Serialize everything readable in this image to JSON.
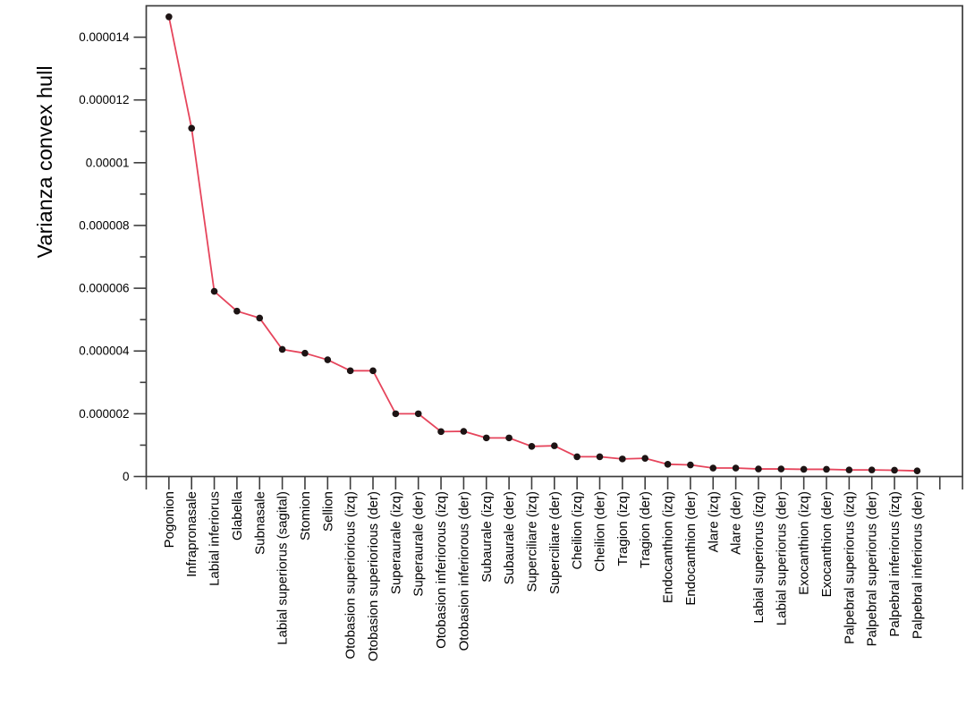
{
  "chart_data": {
    "type": "line",
    "title": "",
    "xlabel": "",
    "ylabel": "Varianza convex hull",
    "legend": "none",
    "grid": "off",
    "frame_box": true,
    "line_color": "#e6455c",
    "marker_color": "#1d1414",
    "frame_color": "#3d3d3d",
    "ylim": [
      0,
      1.5e-05
    ],
    "y_major_ticks": [
      {
        "value": 0,
        "label": "0"
      },
      {
        "value": 2e-06,
        "label": "0.000002"
      },
      {
        "value": 4e-06,
        "label": "0.000004"
      },
      {
        "value": 6e-06,
        "label": "0.000006"
      },
      {
        "value": 8e-06,
        "label": "0.000008"
      },
      {
        "value": 1e-05,
        "label": "0.00001"
      },
      {
        "value": 1.2e-05,
        "label": "0.000012"
      },
      {
        "value": 1.4e-05,
        "label": "0.000014"
      }
    ],
    "y_minor_ticks": [
      1e-06,
      3e-06,
      5e-06,
      7e-06,
      9e-06,
      1.1e-05,
      1.3e-05
    ],
    "extra_unlabeled_x_ticks": 2,
    "categories": [
      "Pogonion",
      "Infrapronasale",
      "Labial inferiorus",
      "Glabella",
      "Subnasale",
      "Labial superiorus (sagital)",
      "Stomion",
      "Sellion",
      "Otobasion superiorious (izq)",
      "Otobasion superiorious (der)",
      "Superaurale (izq)",
      "Superaurale (der)",
      "Otobasion inferiorous (izq)",
      "Otobasion inferiorous (der)",
      "Subaurale (izq)",
      "Subaurale (der)",
      "Superciliare (izq)",
      "Superciliare (der)",
      "Cheilion (izq)",
      "Cheilion (der)",
      "Tragion (izq)",
      "Tragion (der)",
      "Endocanthion (izq)",
      "Endocanthion (der)",
      "Alare (izq)",
      "Alare (der)",
      "Labial superiorus (izq)",
      "Labial superiorus (der)",
      "Exocanthion (izq)",
      "Exocanthion (der)",
      "Palpebral superiorus (izq)",
      "Palpebral superiorus (der)",
      "Palpebral inferiorus (izq)",
      "Palpebral inferiorus (der)"
    ],
    "values": [
      1.465e-05,
      1.11e-05,
      5.9e-06,
      5.27e-06,
      5.05e-06,
      4.05e-06,
      3.93e-06,
      3.72e-06,
      3.37e-06,
      3.37e-06,
      2e-06,
      2e-06,
      1.43e-06,
      1.44e-06,
      1.23e-06,
      1.23e-06,
      9.6e-07,
      9.8e-07,
      6.3e-07,
      6.3e-07,
      5.6e-07,
      5.8e-07,
      3.9e-07,
      3.7e-07,
      2.7e-07,
      2.7e-07,
      2.4e-07,
      2.4e-07,
      2.3e-07,
      2.3e-07,
      2.1e-07,
      2.1e-07,
      2e-07,
      1.8e-07
    ]
  }
}
